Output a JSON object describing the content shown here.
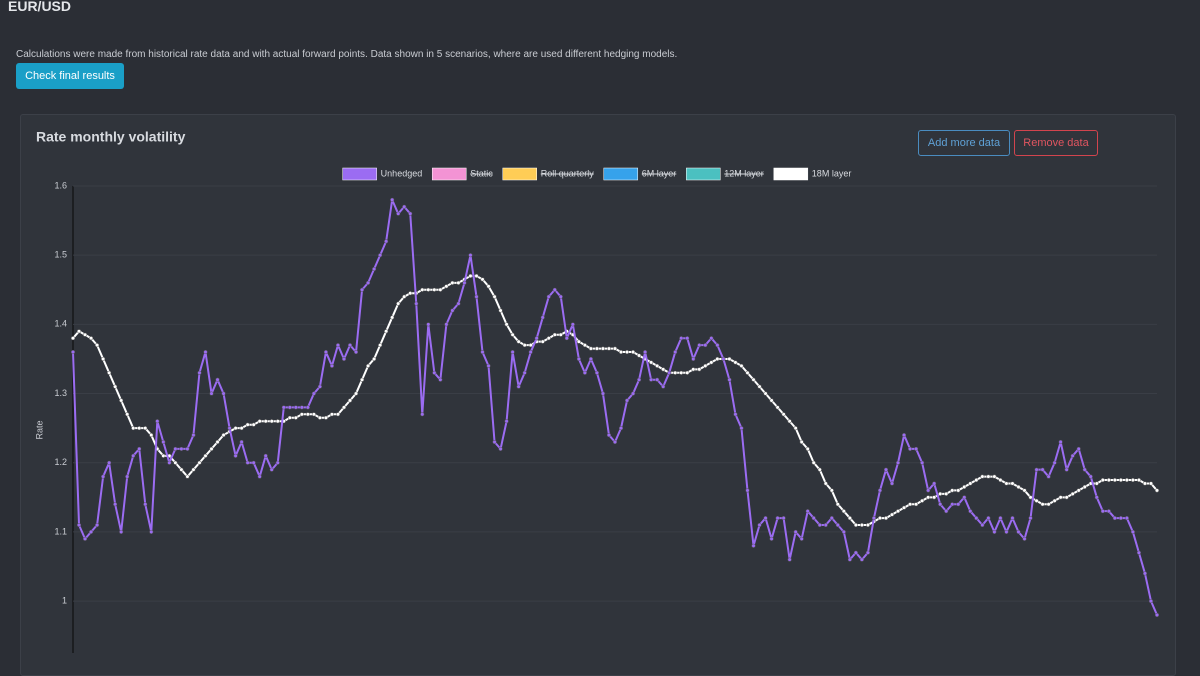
{
  "header": {
    "title": "EUR/USD",
    "description": "Calculations were made from historical rate data and with actual forward points. Data shown in 5 scenarios, where are used different hedging models.",
    "button": "Check final results"
  },
  "card": {
    "buttons": [
      "Add more data",
      "Remove data"
    ]
  },
  "chart_data": {
    "type": "line",
    "title": "Rate monthly volatility",
    "y_label": "Rate",
    "ylim": [
      0.925,
      1.6
    ],
    "yticks": [
      1.0,
      1.1,
      1.2,
      1.3,
      1.4,
      1.5,
      1.6
    ],
    "grid": true,
    "legend": "top",
    "series": [
      {
        "name": "Unhedged",
        "color": "#9b6cf2",
        "values": [
          1.36,
          1.11,
          1.09,
          1.1,
          1.11,
          1.18,
          1.2,
          1.14,
          1.1,
          1.18,
          1.21,
          1.22,
          1.14,
          1.1,
          1.26,
          1.23,
          1.2,
          1.22,
          1.22,
          1.22,
          1.24,
          1.33,
          1.36,
          1.3,
          1.32,
          1.3,
          1.25,
          1.21,
          1.23,
          1.2,
          1.2,
          1.18,
          1.21,
          1.19,
          1.2,
          1.28,
          1.28,
          1.28,
          1.28,
          1.28,
          1.3,
          1.31,
          1.36,
          1.34,
          1.37,
          1.35,
          1.37,
          1.36,
          1.45,
          1.46,
          1.48,
          1.5,
          1.52,
          1.58,
          1.56,
          1.57,
          1.56,
          1.43,
          1.27,
          1.4,
          1.33,
          1.32,
          1.4,
          1.42,
          1.43,
          1.46,
          1.5,
          1.44,
          1.36,
          1.34,
          1.23,
          1.22,
          1.26,
          1.36,
          1.31,
          1.33,
          1.36,
          1.38,
          1.41,
          1.44,
          1.45,
          1.44,
          1.38,
          1.4,
          1.35,
          1.33,
          1.35,
          1.33,
          1.3,
          1.24,
          1.23,
          1.25,
          1.29,
          1.3,
          1.32,
          1.36,
          1.32,
          1.32,
          1.31,
          1.33,
          1.36,
          1.38,
          1.38,
          1.35,
          1.37,
          1.37,
          1.38,
          1.37,
          1.35,
          1.32,
          1.27,
          1.25,
          1.16,
          1.08,
          1.11,
          1.12,
          1.09,
          1.12,
          1.12,
          1.06,
          1.1,
          1.09,
          1.13,
          1.12,
          1.11,
          1.11,
          1.12,
          1.11,
          1.1,
          1.06,
          1.07,
          1.06,
          1.07,
          1.12,
          1.16,
          1.19,
          1.17,
          1.2,
          1.24,
          1.22,
          1.22,
          1.2,
          1.16,
          1.17,
          1.14,
          1.13,
          1.14,
          1.14,
          1.15,
          1.13,
          1.12,
          1.11,
          1.12,
          1.1,
          1.12,
          1.1,
          1.12,
          1.1,
          1.09,
          1.12,
          1.19,
          1.19,
          1.18,
          1.2,
          1.23,
          1.19,
          1.21,
          1.22,
          1.19,
          1.18,
          1.15,
          1.13,
          1.13,
          1.12,
          1.12,
          1.12,
          1.1,
          1.07,
          1.04,
          1.0,
          0.98
        ]
      },
      {
        "name": "Static",
        "color": "#f393d4",
        "hidden": true
      },
      {
        "name": "Roll quarterly",
        "color": "#ffcd56",
        "hidden": true
      },
      {
        "name": "6M layer",
        "color": "#36a2eb",
        "hidden": true
      },
      {
        "name": "12M layer",
        "color": "#4bc0c0",
        "hidden": true
      },
      {
        "name": "18M layer",
        "color": "#ffffff",
        "values": [
          1.38,
          1.39,
          1.385,
          1.38,
          1.37,
          1.35,
          1.33,
          1.31,
          1.29,
          1.27,
          1.25,
          1.25,
          1.25,
          1.24,
          1.22,
          1.21,
          1.21,
          1.2,
          1.19,
          1.18,
          1.19,
          1.2,
          1.21,
          1.22,
          1.23,
          1.24,
          1.245,
          1.25,
          1.25,
          1.255,
          1.255,
          1.26,
          1.26,
          1.26,
          1.26,
          1.26,
          1.265,
          1.265,
          1.27,
          1.27,
          1.27,
          1.265,
          1.265,
          1.27,
          1.27,
          1.28,
          1.29,
          1.3,
          1.32,
          1.34,
          1.35,
          1.37,
          1.39,
          1.41,
          1.43,
          1.44,
          1.445,
          1.445,
          1.45,
          1.45,
          1.45,
          1.45,
          1.455,
          1.46,
          1.46,
          1.465,
          1.47,
          1.47,
          1.465,
          1.455,
          1.44,
          1.42,
          1.4,
          1.385,
          1.375,
          1.37,
          1.37,
          1.375,
          1.375,
          1.38,
          1.385,
          1.385,
          1.39,
          1.385,
          1.375,
          1.37,
          1.365,
          1.365,
          1.365,
          1.365,
          1.365,
          1.36,
          1.36,
          1.36,
          1.355,
          1.35,
          1.345,
          1.34,
          1.335,
          1.33,
          1.33,
          1.33,
          1.33,
          1.335,
          1.335,
          1.34,
          1.345,
          1.35,
          1.35,
          1.35,
          1.345,
          1.34,
          1.33,
          1.32,
          1.31,
          1.3,
          1.29,
          1.28,
          1.27,
          1.26,
          1.25,
          1.23,
          1.22,
          1.2,
          1.19,
          1.17,
          1.16,
          1.14,
          1.13,
          1.12,
          1.11,
          1.11,
          1.11,
          1.115,
          1.12,
          1.12,
          1.125,
          1.13,
          1.135,
          1.14,
          1.14,
          1.145,
          1.15,
          1.15,
          1.155,
          1.155,
          1.16,
          1.16,
          1.165,
          1.17,
          1.175,
          1.18,
          1.18,
          1.18,
          1.175,
          1.17,
          1.17,
          1.165,
          1.16,
          1.15,
          1.145,
          1.14,
          1.14,
          1.145,
          1.15,
          1.15,
          1.155,
          1.16,
          1.165,
          1.17,
          1.17,
          1.175,
          1.175,
          1.175,
          1.175,
          1.175,
          1.175,
          1.175,
          1.17,
          1.17,
          1.16
        ]
      }
    ]
  }
}
